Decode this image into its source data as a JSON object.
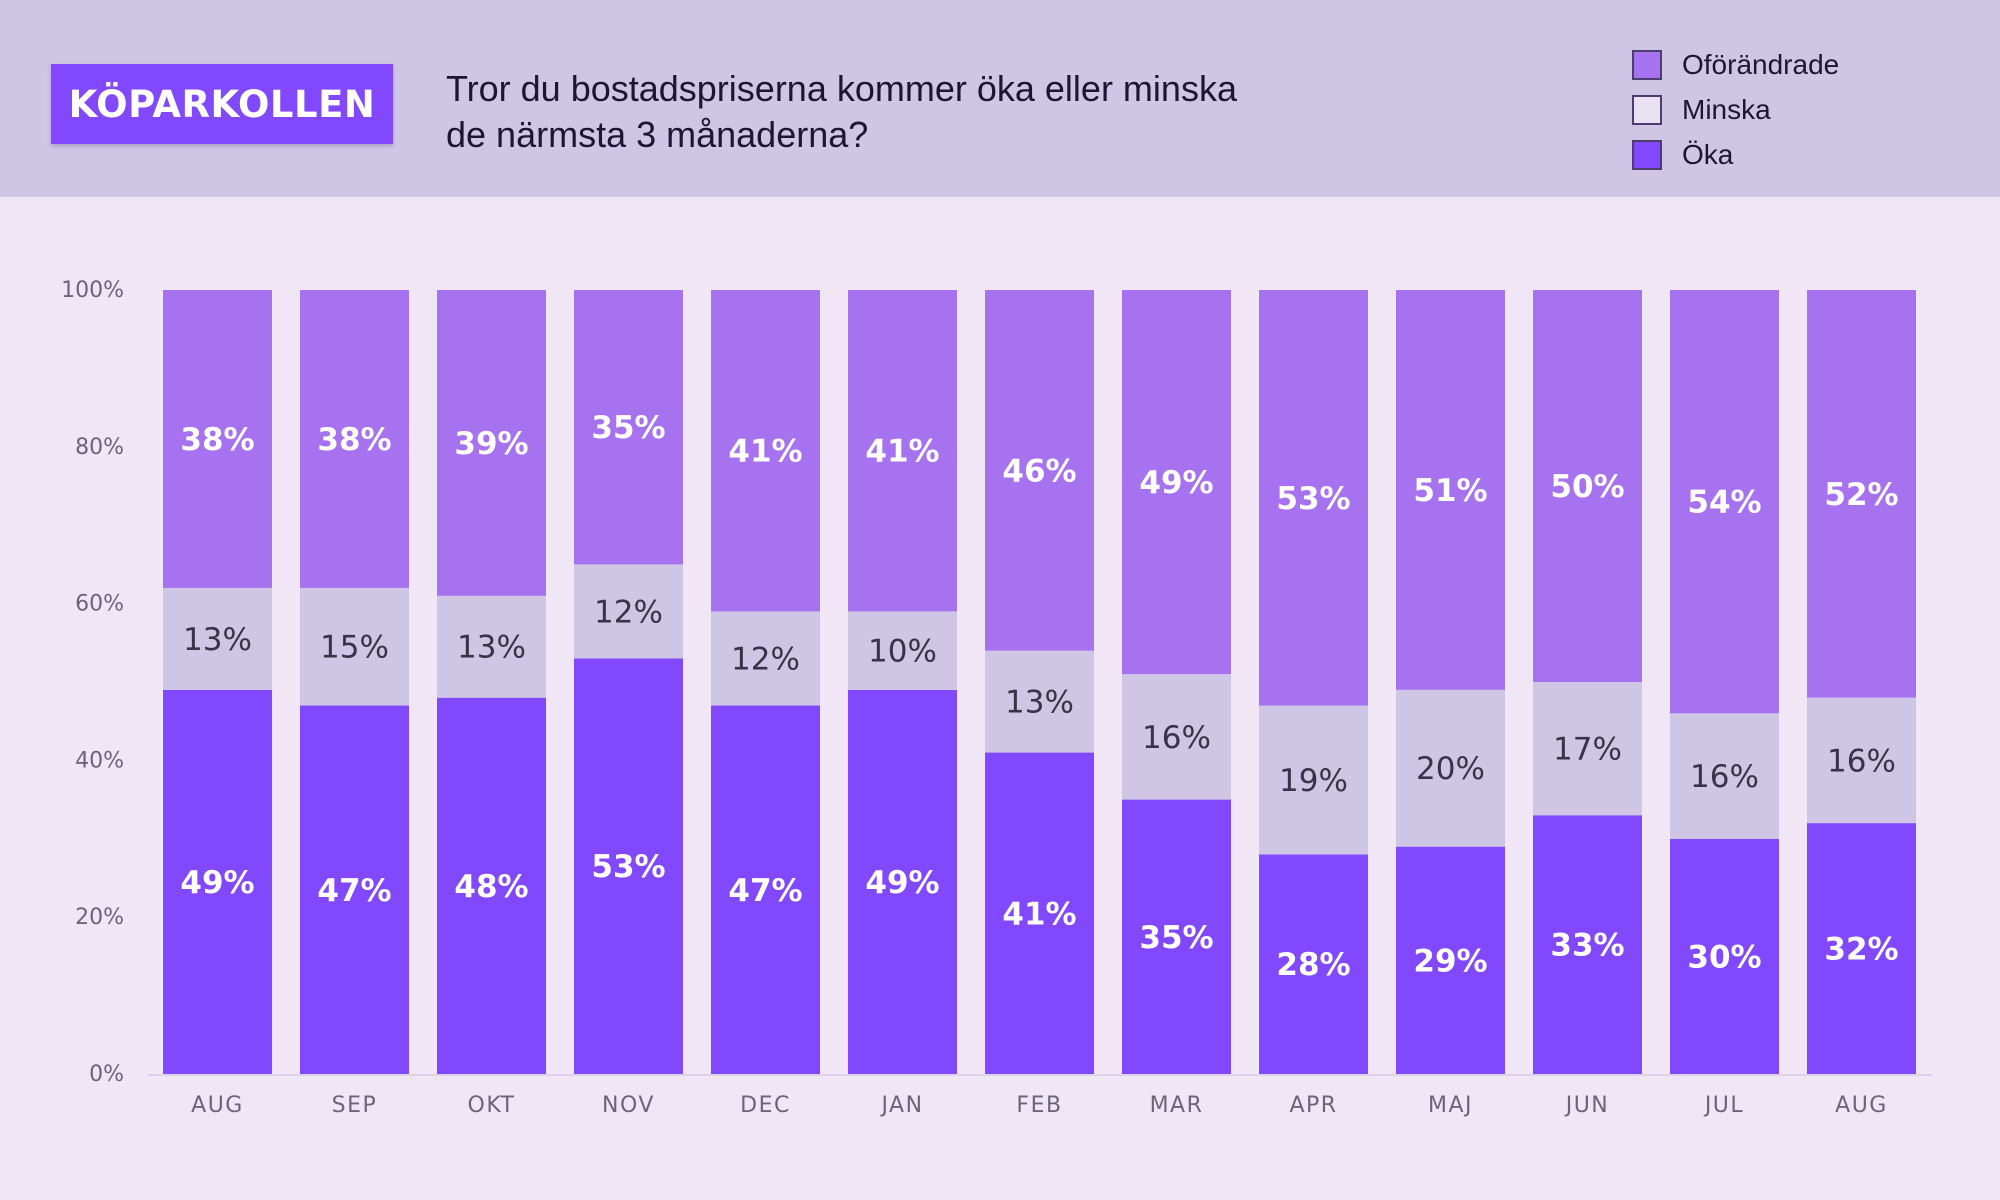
{
  "brand": {
    "label": "KÖPARKOLLEN"
  },
  "header": {
    "title_line1": "Tror du bostadspriserna kommer öka eller minska",
    "title_line2": "de närmsta 3 månaderna?"
  },
  "colors": {
    "oka": "#8148fd",
    "minska": "#cfc6e6",
    "oforandrade": "#a772f0",
    "background": "#f0e6f6",
    "header_bg": "#cfc6e6",
    "axis_text": "#6b6578",
    "label_light": "#ffffff",
    "label_dark": "#3a3348"
  },
  "legend": [
    {
      "label": "Oförändrade",
      "color": "#a772f0"
    },
    {
      "label": "Minska",
      "color": "#e8e2f2"
    },
    {
      "label": "Öka",
      "color": "#8148fd"
    }
  ],
  "chart_data": {
    "type": "bar",
    "stacked": true,
    "categories": [
      "AUG",
      "SEP",
      "OKT",
      "NOV",
      "DEC",
      "JAN",
      "FEB",
      "MAR",
      "APR",
      "MAJ",
      "JUN",
      "JUL",
      "AUG"
    ],
    "series": [
      {
        "name": "Öka",
        "values": [
          49,
          47,
          48,
          53,
          47,
          49,
          41,
          35,
          28,
          29,
          33,
          30,
          32
        ]
      },
      {
        "name": "Minska",
        "values": [
          13,
          15,
          13,
          12,
          12,
          10,
          13,
          16,
          19,
          20,
          17,
          16,
          16
        ]
      },
      {
        "name": "Oförändrade",
        "values": [
          38,
          38,
          39,
          35,
          41,
          41,
          46,
          49,
          53,
          51,
          50,
          54,
          52
        ]
      }
    ],
    "yticks": [
      "0%",
      "20%",
      "40%",
      "60%",
      "80%",
      "100%"
    ],
    "ylim": [
      0,
      100
    ],
    "title": "Tror du bostadspriserna kommer öka eller minska de närmsta 3 månaderna?",
    "xlabel": "",
    "ylabel": "",
    "grid": false,
    "legend_position": "top-right"
  }
}
